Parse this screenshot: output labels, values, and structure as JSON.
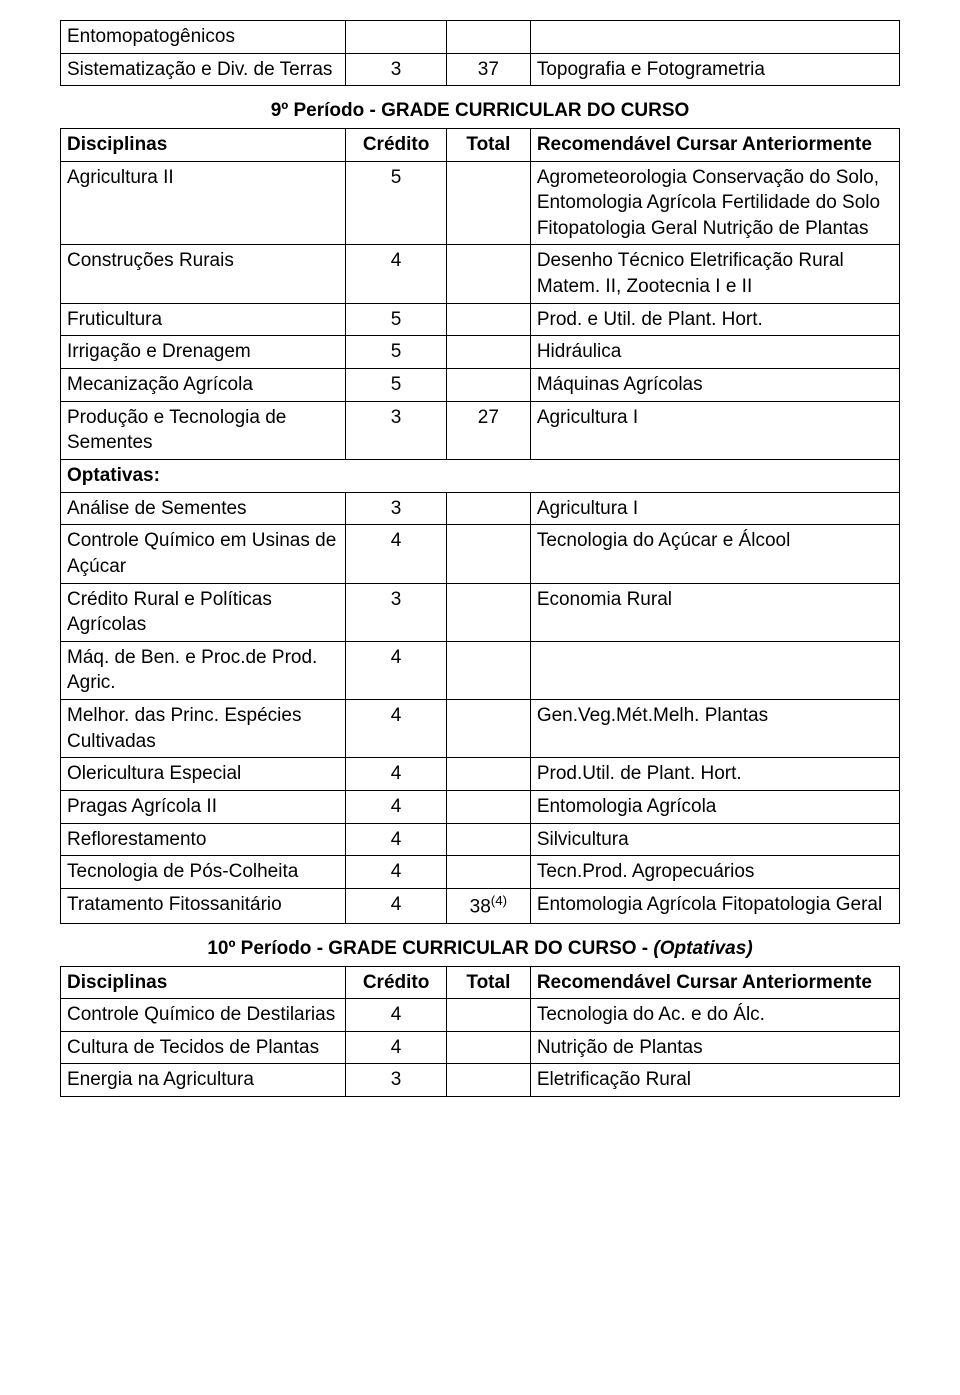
{
  "top_table": {
    "rows": [
      {
        "disc": "Entomopatogênicos",
        "cred": "",
        "tot": "",
        "rec": ""
      },
      {
        "disc": "Sistematização e Div. de Terras",
        "cred": "3",
        "tot": "37",
        "rec": "Topografia e Fotogrametria"
      }
    ]
  },
  "period9": {
    "title": "9º Período - GRADE CURRICULAR DO CURSO",
    "headers": {
      "disc": "Disciplinas",
      "cred": "Crédito",
      "tot": "Total",
      "rec": "Recomendável Cursar Anteriormente"
    },
    "rows": [
      {
        "disc": "Agricultura II",
        "cred": "5",
        "tot": "",
        "rec": "Agrometeorologia Conservação do Solo, Entomologia Agrícola Fertilidade do Solo Fitopatologia Geral Nutrição de Plantas"
      },
      {
        "disc": "Construções Rurais",
        "cred": "4",
        "tot": "",
        "rec": "Desenho Técnico Eletrificação Rural Matem. II, Zootecnia I e II"
      },
      {
        "disc": "Fruticultura",
        "cred": "5",
        "tot": "",
        "rec": "Prod. e Util. de Plant. Hort."
      },
      {
        "disc": "Irrigação e Drenagem",
        "cred": "5",
        "tot": "",
        "rec": "Hidráulica"
      },
      {
        "disc": "Mecanização Agrícola",
        "cred": "5",
        "tot": "",
        "rec": "Máquinas Agrícolas"
      },
      {
        "disc": "Produção e Tecnologia de Sementes",
        "cred": "3",
        "tot": "27",
        "rec": "Agricultura I"
      },
      {
        "disc": "Optativas:",
        "bold": true
      },
      {
        "disc": "Análise de Sementes",
        "cred": "3",
        "tot": "",
        "rec": "Agricultura I"
      },
      {
        "disc": "Controle Químico em Usinas de Açúcar",
        "cred": "4",
        "tot": "",
        "rec": "Tecnologia do Açúcar e Álcool"
      },
      {
        "disc": "Crédito Rural e Políticas Agrícolas",
        "cred": "3",
        "tot": "",
        "rec": "Economia Rural"
      },
      {
        "disc": "Máq. de Ben. e Proc.de Prod. Agric.",
        "cred": "4",
        "tot": "",
        "rec": ""
      },
      {
        "disc": "Melhor. das Princ. Espécies  Cultivadas",
        "cred": "4",
        "tot": "",
        "rec": "Gen.Veg.Mét.Melh. Plantas"
      },
      {
        "disc": "Olericultura Especial",
        "cred": "4",
        "tot": "",
        "rec": "Prod.Util. de Plant. Hort."
      },
      {
        "disc": "Pragas Agrícola II",
        "cred": "4",
        "tot": "",
        "rec": "Entomologia Agrícola"
      },
      {
        "disc": "Reflorestamento",
        "cred": "4",
        "tot": "",
        "rec": "Silvicultura"
      },
      {
        "disc": "Tecnologia de Pós-Colheita",
        "cred": "4",
        "tot": "",
        "rec": "Tecn.Prod. Agropecuários"
      },
      {
        "disc": "Tratamento Fitossanitário",
        "cred": "4",
        "tot": "38",
        "tot_sup": "(4)",
        "rec": "Entomologia Agrícola Fitopatologia Geral"
      }
    ]
  },
  "period10": {
    "title_main": "10º Período - GRADE CURRICULAR DO CURSO - ",
    "title_italic": "(Optativas)",
    "headers": {
      "disc": "Disciplinas",
      "cred": "Crédito",
      "tot": "Total",
      "rec": "Recomendável Cursar Anteriormente"
    },
    "rows": [
      {
        "disc": "Controle Químico de Destilarias",
        "cred": "4",
        "tot": "",
        "rec": "Tecnologia do Ac. e do Álc."
      },
      {
        "disc": "Cultura de Tecidos de Plantas",
        "cred": "4",
        "tot": "",
        "rec": "Nutrição de Plantas"
      },
      {
        "disc": "Energia na Agricultura",
        "cred": "3",
        "tot": "",
        "rec": "Eletrificação Rural"
      }
    ]
  },
  "style": {
    "font_family": "Arial",
    "font_size_pt": 14,
    "text_color": "#000000",
    "border_color": "#000000",
    "background_color": "#ffffff"
  }
}
